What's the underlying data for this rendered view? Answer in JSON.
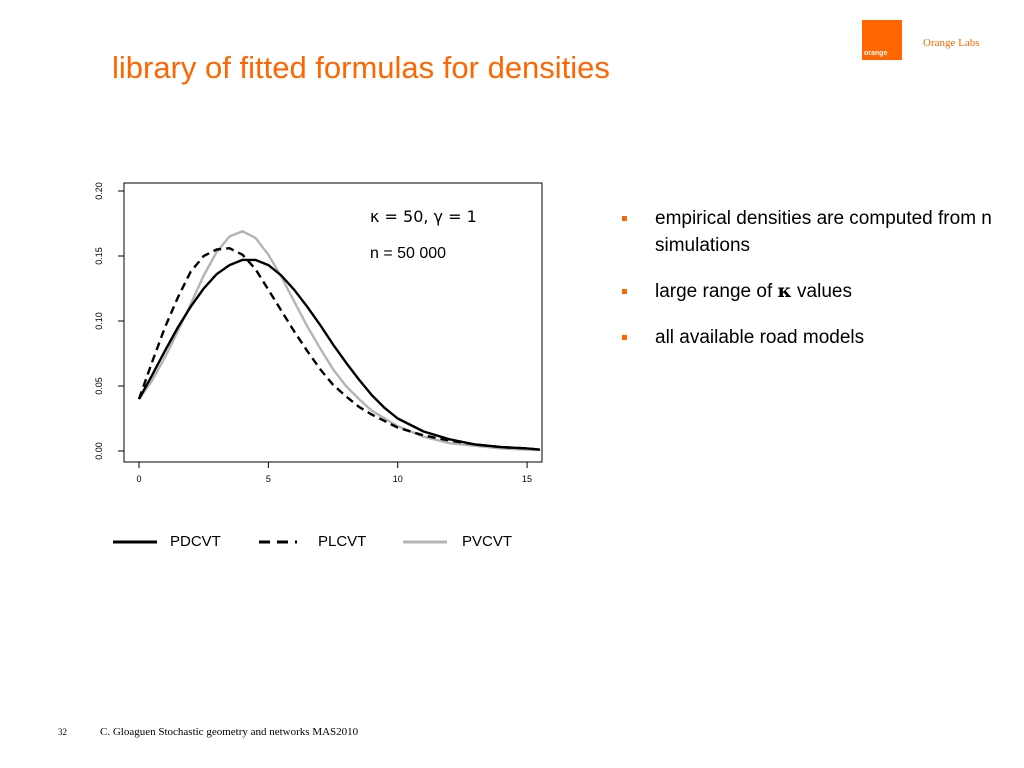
{
  "brand": {
    "logo_word": "orange",
    "name": "Orange Labs",
    "accent_color": "#ff6600"
  },
  "slide": {
    "title": "library of fitted formulas for densities",
    "bullets": [
      {
        "text": "empirical densities are computed from n simulations"
      },
      {
        "pre": "large range of ",
        "symbol": "κ",
        "post": " values"
      },
      {
        "text": "all available road models"
      }
    ]
  },
  "footer": {
    "page_number": "32",
    "text": "C. Gloaguen Stochastic geometry and networks MAS2010"
  },
  "chart_data": {
    "type": "line",
    "title": "",
    "xlabel": "",
    "ylabel": "",
    "xlim": [
      0,
      15.5
    ],
    "ylim": [
      0,
      0.2
    ],
    "xticks": [
      0,
      5,
      10,
      15
    ],
    "xtick_labels": [
      "0",
      "5",
      "10",
      "15"
    ],
    "yticks": [
      0,
      0.05,
      0.1,
      0.15,
      0.2
    ],
    "ytick_labels": [
      "0.00",
      "0.05",
      "0.10",
      "0.15",
      "0.20"
    ],
    "grid": false,
    "annotations": [
      "κ = 50, γ = 1",
      "n = 50 000"
    ],
    "legend_position": "bottom",
    "series": [
      {
        "name": "PDCVT",
        "style": "solid",
        "color": "#000000",
        "x": [
          0,
          0.5,
          1,
          1.5,
          2,
          2.5,
          3,
          3.5,
          4,
          4.5,
          5,
          5.5,
          6,
          6.5,
          7,
          7.5,
          8,
          8.5,
          9,
          9.5,
          10,
          11,
          12,
          13,
          14,
          15,
          15.5
        ],
        "y": [
          0.04,
          0.058,
          0.077,
          0.095,
          0.111,
          0.125,
          0.136,
          0.143,
          0.147,
          0.147,
          0.143,
          0.135,
          0.124,
          0.111,
          0.097,
          0.082,
          0.068,
          0.055,
          0.043,
          0.033,
          0.025,
          0.015,
          0.009,
          0.005,
          0.003,
          0.002,
          0.001
        ]
      },
      {
        "name": "PLCVT",
        "style": "dashed",
        "color": "#000000",
        "x": [
          0,
          0.5,
          1,
          1.5,
          2,
          2.5,
          3,
          3.5,
          4,
          4.5,
          5,
          5.5,
          6,
          6.5,
          7,
          7.5,
          8,
          8.5,
          9,
          9.5,
          10,
          11,
          12,
          13,
          14,
          15,
          15.5
        ],
        "y": [
          0.04,
          0.068,
          0.095,
          0.118,
          0.138,
          0.15,
          0.155,
          0.156,
          0.151,
          0.14,
          0.124,
          0.108,
          0.092,
          0.077,
          0.063,
          0.051,
          0.042,
          0.034,
          0.028,
          0.023,
          0.018,
          0.012,
          0.008,
          0.005,
          0.003,
          0.002,
          0.001
        ]
      },
      {
        "name": "PVCVT",
        "style": "solid",
        "color": "#b4b4b4",
        "x": [
          0,
          0.5,
          1,
          1.5,
          2,
          2.5,
          3,
          3.5,
          4,
          4.5,
          5,
          5.5,
          6,
          6.5,
          7,
          7.5,
          8,
          8.5,
          9,
          9.5,
          10,
          11,
          12,
          13,
          14,
          15,
          15.5
        ],
        "y": [
          0.04,
          0.054,
          0.072,
          0.092,
          0.113,
          0.135,
          0.153,
          0.165,
          0.169,
          0.164,
          0.151,
          0.134,
          0.115,
          0.096,
          0.079,
          0.063,
          0.05,
          0.04,
          0.031,
          0.025,
          0.019,
          0.011,
          0.006,
          0.004,
          0.002,
          0.001,
          0.001
        ]
      }
    ]
  }
}
